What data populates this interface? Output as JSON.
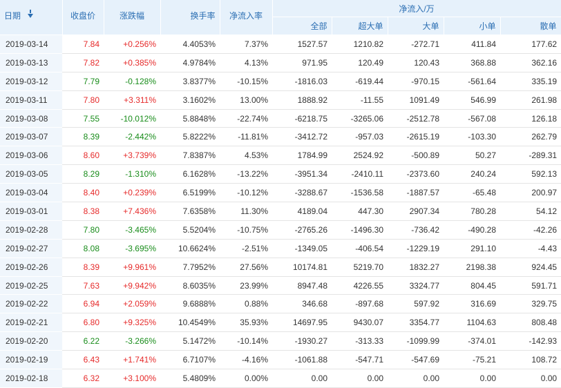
{
  "colors": {
    "up": "#e62a2a",
    "down": "#188c1a",
    "header_bg": "#e6f1fb",
    "header_text": "#2c6fb3"
  },
  "headers": {
    "date": "日期",
    "close": "收盘价",
    "change": "涨跌幅",
    "turnover": "换手率",
    "net_rate": "净流入率",
    "net_group": "净流入/万",
    "all": "全部",
    "xl": "超大单",
    "l": "大单",
    "s": "小单",
    "r": "散单"
  },
  "sort_icon": "sort-down-arrow-icon",
  "rows": [
    {
      "date": "2019-03-14",
      "close": "7.84",
      "change": "+0.256%",
      "turnover": "4.4053%",
      "rate": "7.37%",
      "all": "1527.57",
      "xl": "1210.82",
      "l": "-272.71",
      "s": "411.84",
      "r": "177.62",
      "dir": "up"
    },
    {
      "date": "2019-03-13",
      "close": "7.82",
      "change": "+0.385%",
      "turnover": "4.9784%",
      "rate": "4.13%",
      "all": "971.95",
      "xl": "120.49",
      "l": "120.43",
      "s": "368.88",
      "r": "362.16",
      "dir": "up"
    },
    {
      "date": "2019-03-12",
      "close": "7.79",
      "change": "-0.128%",
      "turnover": "3.8377%",
      "rate": "-10.15%",
      "all": "-1816.03",
      "xl": "-619.44",
      "l": "-970.15",
      "s": "-561.64",
      "r": "335.19",
      "dir": "down"
    },
    {
      "date": "2019-03-11",
      "close": "7.80",
      "change": "+3.311%",
      "turnover": "3.1602%",
      "rate": "13.00%",
      "all": "1888.92",
      "xl": "-11.55",
      "l": "1091.49",
      "s": "546.99",
      "r": "261.98",
      "dir": "up"
    },
    {
      "date": "2019-03-08",
      "close": "7.55",
      "change": "-10.012%",
      "turnover": "5.8848%",
      "rate": "-22.74%",
      "all": "-6218.75",
      "xl": "-3265.06",
      "l": "-2512.78",
      "s": "-567.08",
      "r": "126.18",
      "dir": "down"
    },
    {
      "date": "2019-03-07",
      "close": "8.39",
      "change": "-2.442%",
      "turnover": "5.8222%",
      "rate": "-11.81%",
      "all": "-3412.72",
      "xl": "-957.03",
      "l": "-2615.19",
      "s": "-103.30",
      "r": "262.79",
      "dir": "down"
    },
    {
      "date": "2019-03-06",
      "close": "8.60",
      "change": "+3.739%",
      "turnover": "7.8387%",
      "rate": "4.53%",
      "all": "1784.99",
      "xl": "2524.92",
      "l": "-500.89",
      "s": "50.27",
      "r": "-289.31",
      "dir": "up"
    },
    {
      "date": "2019-03-05",
      "close": "8.29",
      "change": "-1.310%",
      "turnover": "6.1628%",
      "rate": "-13.22%",
      "all": "-3951.34",
      "xl": "-2410.11",
      "l": "-2373.60",
      "s": "240.24",
      "r": "592.13",
      "dir": "down"
    },
    {
      "date": "2019-03-04",
      "close": "8.40",
      "change": "+0.239%",
      "turnover": "6.5199%",
      "rate": "-10.12%",
      "all": "-3288.67",
      "xl": "-1536.58",
      "l": "-1887.57",
      "s": "-65.48",
      "r": "200.97",
      "dir": "up"
    },
    {
      "date": "2019-03-01",
      "close": "8.38",
      "change": "+7.436%",
      "turnover": "7.6358%",
      "rate": "11.30%",
      "all": "4189.04",
      "xl": "447.30",
      "l": "2907.34",
      "s": "780.28",
      "r": "54.12",
      "dir": "up"
    },
    {
      "date": "2019-02-28",
      "close": "7.80",
      "change": "-3.465%",
      "turnover": "5.5204%",
      "rate": "-10.75%",
      "all": "-2765.26",
      "xl": "-1496.30",
      "l": "-736.42",
      "s": "-490.28",
      "r": "-42.26",
      "dir": "down"
    },
    {
      "date": "2019-02-27",
      "close": "8.08",
      "change": "-3.695%",
      "turnover": "10.6624%",
      "rate": "-2.51%",
      "all": "-1349.05",
      "xl": "-406.54",
      "l": "-1229.19",
      "s": "291.10",
      "r": "-4.43",
      "dir": "down"
    },
    {
      "date": "2019-02-26",
      "close": "8.39",
      "change": "+9.961%",
      "turnover": "7.7952%",
      "rate": "27.56%",
      "all": "10174.81",
      "xl": "5219.70",
      "l": "1832.27",
      "s": "2198.38",
      "r": "924.45",
      "dir": "up"
    },
    {
      "date": "2019-02-25",
      "close": "7.63",
      "change": "+9.942%",
      "turnover": "8.6035%",
      "rate": "23.99%",
      "all": "8947.48",
      "xl": "4226.55",
      "l": "3324.77",
      "s": "804.45",
      "r": "591.71",
      "dir": "up"
    },
    {
      "date": "2019-02-22",
      "close": "6.94",
      "change": "+2.059%",
      "turnover": "9.6888%",
      "rate": "0.88%",
      "all": "346.68",
      "xl": "-897.68",
      "l": "597.92",
      "s": "316.69",
      "r": "329.75",
      "dir": "up"
    },
    {
      "date": "2019-02-21",
      "close": "6.80",
      "change": "+9.325%",
      "turnover": "10.4549%",
      "rate": "35.93%",
      "all": "14697.95",
      "xl": "9430.07",
      "l": "3354.77",
      "s": "1104.63",
      "r": "808.48",
      "dir": "up"
    },
    {
      "date": "2019-02-20",
      "close": "6.22",
      "change": "-3.266%",
      "turnover": "5.1472%",
      "rate": "-10.14%",
      "all": "-1930.27",
      "xl": "-313.33",
      "l": "-1099.99",
      "s": "-374.01",
      "r": "-142.93",
      "dir": "down"
    },
    {
      "date": "2019-02-19",
      "close": "6.43",
      "change": "+1.741%",
      "turnover": "6.7107%",
      "rate": "-4.16%",
      "all": "-1061.88",
      "xl": "-547.71",
      "l": "-547.69",
      "s": "-75.21",
      "r": "108.72",
      "dir": "up"
    },
    {
      "date": "2019-02-18",
      "close": "6.32",
      "change": "+3.100%",
      "turnover": "5.4809%",
      "rate": "0.00%",
      "all": "0.00",
      "xl": "0.00",
      "l": "0.00",
      "s": "0.00",
      "r": "0.00",
      "dir": "up"
    }
  ]
}
